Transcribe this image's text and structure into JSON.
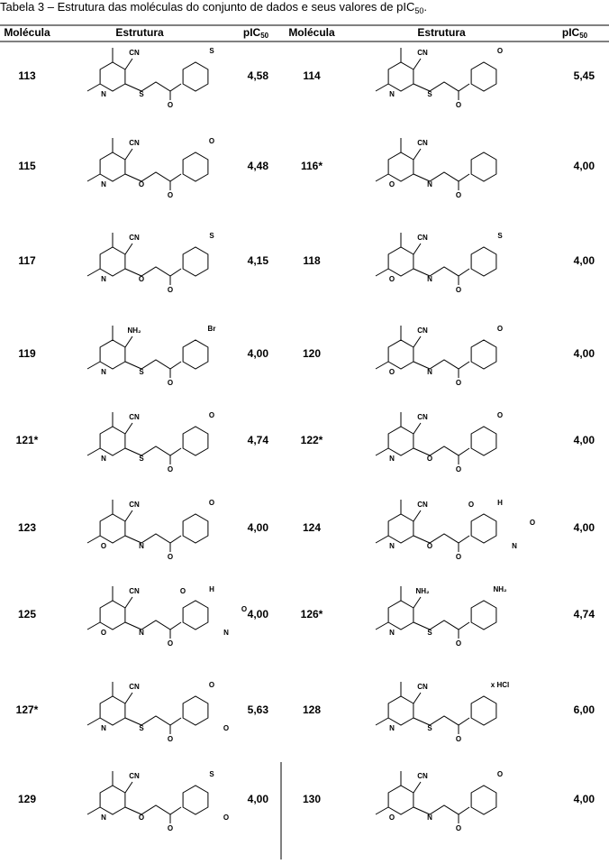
{
  "caption": {
    "text": "Tabela 3 – Estrutura das moléculas do conjunto de dados e seus valores de pIC",
    "sub": "50",
    "end": "."
  },
  "header": {
    "molecule": "Molécula",
    "structure": "Estrutura",
    "value": "pIC",
    "value_sub": "50"
  },
  "rows": [
    {
      "left": {
        "id": "113",
        "value": "4,58",
        "labels": [
          "CN",
          "N",
          "S",
          "O",
          "S"
        ]
      },
      "right": {
        "id": "114",
        "value": "5,45",
        "labels": [
          "CN",
          "N",
          "S",
          "O",
          "O"
        ]
      }
    },
    {
      "left": {
        "id": "115",
        "value": "4,48",
        "labels": [
          "CN",
          "N",
          "O",
          "O",
          "O"
        ]
      },
      "right": {
        "id": "116*",
        "value": "4,00",
        "labels": [
          "CN",
          "O",
          "N",
          "O"
        ]
      }
    },
    {
      "left": {
        "id": "117",
        "value": "4,15",
        "labels": [
          "CN",
          "N",
          "O",
          "O",
          "S"
        ]
      },
      "right": {
        "id": "118",
        "value": "4,00",
        "labels": [
          "CN",
          "O",
          "N",
          "O",
          "S"
        ]
      }
    },
    {
      "left": {
        "id": "119",
        "value": "4,00",
        "labels": [
          "NH₂",
          "N",
          "S",
          "O",
          "Br"
        ]
      },
      "right": {
        "id": "120",
        "value": "4,00",
        "labels": [
          "CN",
          "O",
          "N",
          "O",
          "O"
        ]
      }
    },
    {
      "left": {
        "id": "121*",
        "value": "4,74",
        "labels": [
          "CN",
          "N",
          "S",
          "O",
          "O"
        ]
      },
      "right": {
        "id": "122*",
        "value": "4,00",
        "labels": [
          "CN",
          "N",
          "O",
          "O",
          "O"
        ]
      }
    },
    {
      "left": {
        "id": "123",
        "value": "4,00",
        "labels": [
          "CN",
          "O",
          "N",
          "O",
          "O"
        ]
      },
      "right": {
        "id": "124",
        "value": "4,00",
        "labels": [
          "CN",
          "N",
          "O",
          "O",
          "H",
          "N",
          "O",
          "O"
        ]
      }
    },
    {
      "left": {
        "id": "125",
        "value": "4,00",
        "labels": [
          "CN",
          "O",
          "N",
          "O",
          "H",
          "N",
          "O",
          "O"
        ]
      },
      "right": {
        "id": "126*",
        "value": "4,74",
        "labels": [
          "NH₂",
          "N",
          "S",
          "O",
          "NH₂"
        ]
      }
    },
    {
      "left": {
        "id": "127*",
        "value": "5,63",
        "labels": [
          "CN",
          "N",
          "S",
          "O",
          "O",
          "O"
        ]
      },
      "right": {
        "id": "128",
        "value": "6,00",
        "labels": [
          "CN",
          "N",
          "S",
          "O",
          "x HCl"
        ]
      }
    },
    {
      "left": {
        "id": "129",
        "value": "4,00",
        "labels": [
          "CN",
          "N",
          "O",
          "O",
          "S",
          "O"
        ]
      },
      "right": {
        "id": "130",
        "value": "4,00",
        "labels": [
          "CN",
          "O",
          "N",
          "O",
          "O"
        ]
      }
    }
  ]
}
